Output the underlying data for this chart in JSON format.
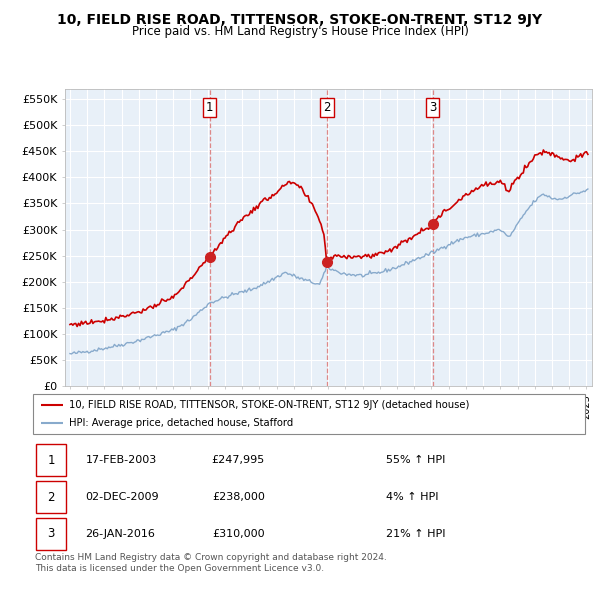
{
  "title": "10, FIELD RISE ROAD, TITTENSOR, STOKE-ON-TRENT, ST12 9JY",
  "subtitle": "Price paid vs. HM Land Registry's House Price Index (HPI)",
  "ylim": [
    0,
    570000
  ],
  "yticks": [
    0,
    50000,
    100000,
    150000,
    200000,
    250000,
    300000,
    350000,
    400000,
    450000,
    500000,
    550000
  ],
  "ytick_labels": [
    "£0",
    "£50K",
    "£100K",
    "£150K",
    "£200K",
    "£250K",
    "£300K",
    "£350K",
    "£400K",
    "£450K",
    "£500K",
    "£550K"
  ],
  "xlim_start": 1994.7,
  "xlim_end": 2025.3,
  "sale_color": "#cc0000",
  "hpi_color": "#88aacc",
  "sale_label": "10, FIELD RISE ROAD, TITTENSOR, STOKE-ON-TRENT, ST12 9JY (detached house)",
  "hpi_label": "HPI: Average price, detached house, Stafford",
  "transactions": [
    {
      "num": 1,
      "date": "17-FEB-2003",
      "price": 247995,
      "pct": "55%",
      "year": 2003.12
    },
    {
      "num": 2,
      "date": "02-DEC-2009",
      "price": 238000,
      "pct": "4%",
      "year": 2009.92
    },
    {
      "num": 3,
      "date": "26-JAN-2016",
      "price": 310000,
      "pct": "21%",
      "year": 2016.07
    }
  ],
  "footer": "Contains HM Land Registry data © Crown copyright and database right 2024.\nThis data is licensed under the Open Government Licence v3.0.",
  "vline_color": "#dd8888",
  "bg_color": "#e8f0f8"
}
